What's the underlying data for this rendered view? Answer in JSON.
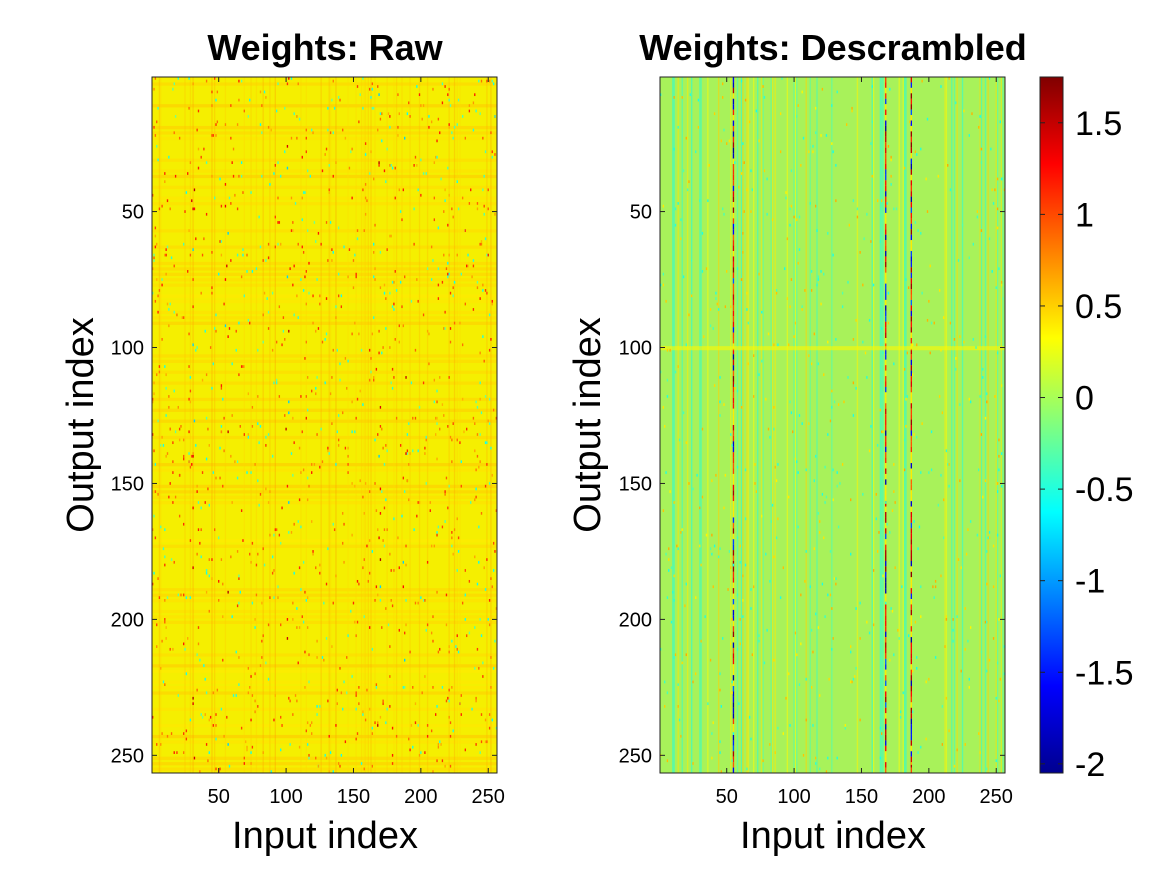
{
  "chart_data": [
    {
      "type": "heatmap",
      "title": "Weights: Raw",
      "xlabel": "Input index",
      "ylabel": "Output index",
      "xlim": [
        0.5,
        256.5
      ],
      "ylim": [
        0.5,
        256.5
      ],
      "y_reversed": true,
      "xticks": [
        50,
        100,
        150,
        200,
        250
      ],
      "yticks": [
        50,
        100,
        150,
        200,
        250
      ],
      "xtick_labels": [
        "50",
        "100",
        "150",
        "200",
        "250"
      ],
      "ytick_labels": [
        "50",
        "100",
        "150",
        "200",
        "250"
      ],
      "dimensions": {
        "rows": 256,
        "cols": 256
      },
      "dominant_value": 0.35,
      "description_of_values": "mostly near 0.3 to 0.4 with sparse red/orange and cyan entries forming horizontal and vertical streaks",
      "colormap": "jet"
    },
    {
      "type": "heatmap",
      "title": "Weights: Descrambled",
      "xlabel": "Input index",
      "ylabel": "Output index",
      "xlim": [
        0.5,
        256.5
      ],
      "ylim": [
        0.5,
        256.5
      ],
      "y_reversed": true,
      "xticks": [
        50,
        100,
        150,
        200,
        250
      ],
      "yticks": [
        50,
        100,
        150,
        200,
        250
      ],
      "xtick_labels": [
        "50",
        "100",
        "150",
        "200",
        "250"
      ],
      "ytick_labels": [
        "50",
        "100",
        "150",
        "200",
        "250"
      ],
      "dimensions": {
        "rows": 256,
        "cols": 256
      },
      "dominant_value": 0.1,
      "description_of_values": "mostly near 0 to 0.2 with vertical streaks; strong columns near input 55, 168 and 187",
      "strong_columns": [
        55,
        168,
        187
      ],
      "colormap": "jet"
    }
  ],
  "colorbar": {
    "min": -2.05,
    "max": 1.75,
    "ticks": [
      1.5,
      1,
      0.5,
      0,
      -0.5,
      -1,
      -1.5,
      -2
    ],
    "tick_labels": [
      "1.5",
      "1",
      "0.5",
      "0",
      "-0.5",
      "-1",
      "-1.5",
      "-2"
    ],
    "colormap": "jet"
  },
  "colors": {
    "raw_background": "#f5ef00",
    "descrambled_background": "#a8f25a"
  }
}
